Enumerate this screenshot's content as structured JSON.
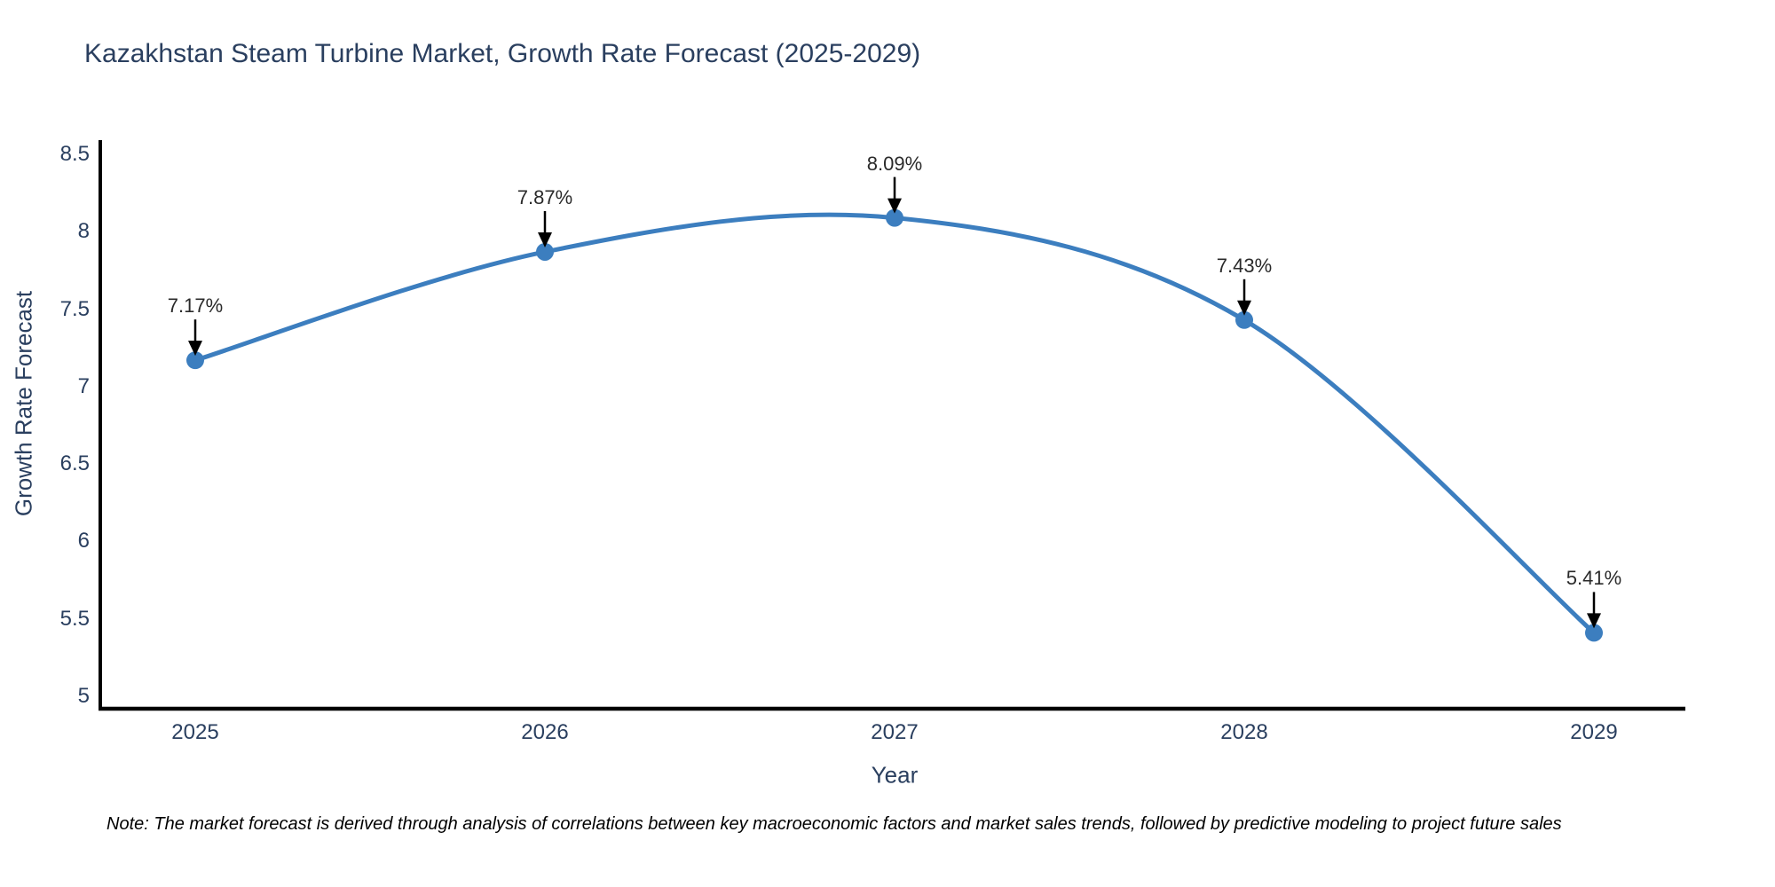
{
  "figure": {
    "title": "Kazakhstan Steam Turbine Market, Growth Rate Forecast (2025-2029)",
    "note": "Note: The market forecast is derived through analysis of correlations between key macroeconomic factors and market sales trends, followed by predictive modeling to project future sales"
  },
  "colors": {
    "line": "#3C7EBF",
    "marker": "#3C7EBF",
    "axis_line": "#000000",
    "arrow": "#000000",
    "text": "#2a3f5f",
    "annotation_text": "#2a2a2a",
    "note_text": "#000000",
    "background": "#ffffff"
  },
  "chart_data": {
    "type": "line",
    "title": "Kazakhstan Steam Turbine Market, Growth Rate Forecast (2025-2029)",
    "x": [
      2025,
      2026,
      2027,
      2028,
      2029
    ],
    "series": [
      {
        "name": "Growth Rate Forecast",
        "values": [
          7.17,
          7.87,
          8.09,
          7.43,
          5.41
        ]
      }
    ],
    "point_labels": [
      "7.17%",
      "7.87%",
      "8.09%",
      "7.43%",
      "5.41%"
    ],
    "xlabel": "Year",
    "ylabel": "Growth Rate Forecast",
    "xticks": [
      "2025",
      "2026",
      "2027",
      "2028",
      "2029"
    ],
    "yticks": [
      "5",
      "5.5",
      "6",
      "6.5",
      "7",
      "7.5",
      "8",
      "8.5"
    ],
    "ytick_values": [
      5,
      5.5,
      6,
      6.5,
      7,
      7.5,
      8,
      8.5
    ],
    "ylim": [
      4.92,
      8.58
    ],
    "grid": false,
    "legend": "none",
    "line_shape": "spline",
    "markers": true,
    "annotations_have_arrows": true
  }
}
